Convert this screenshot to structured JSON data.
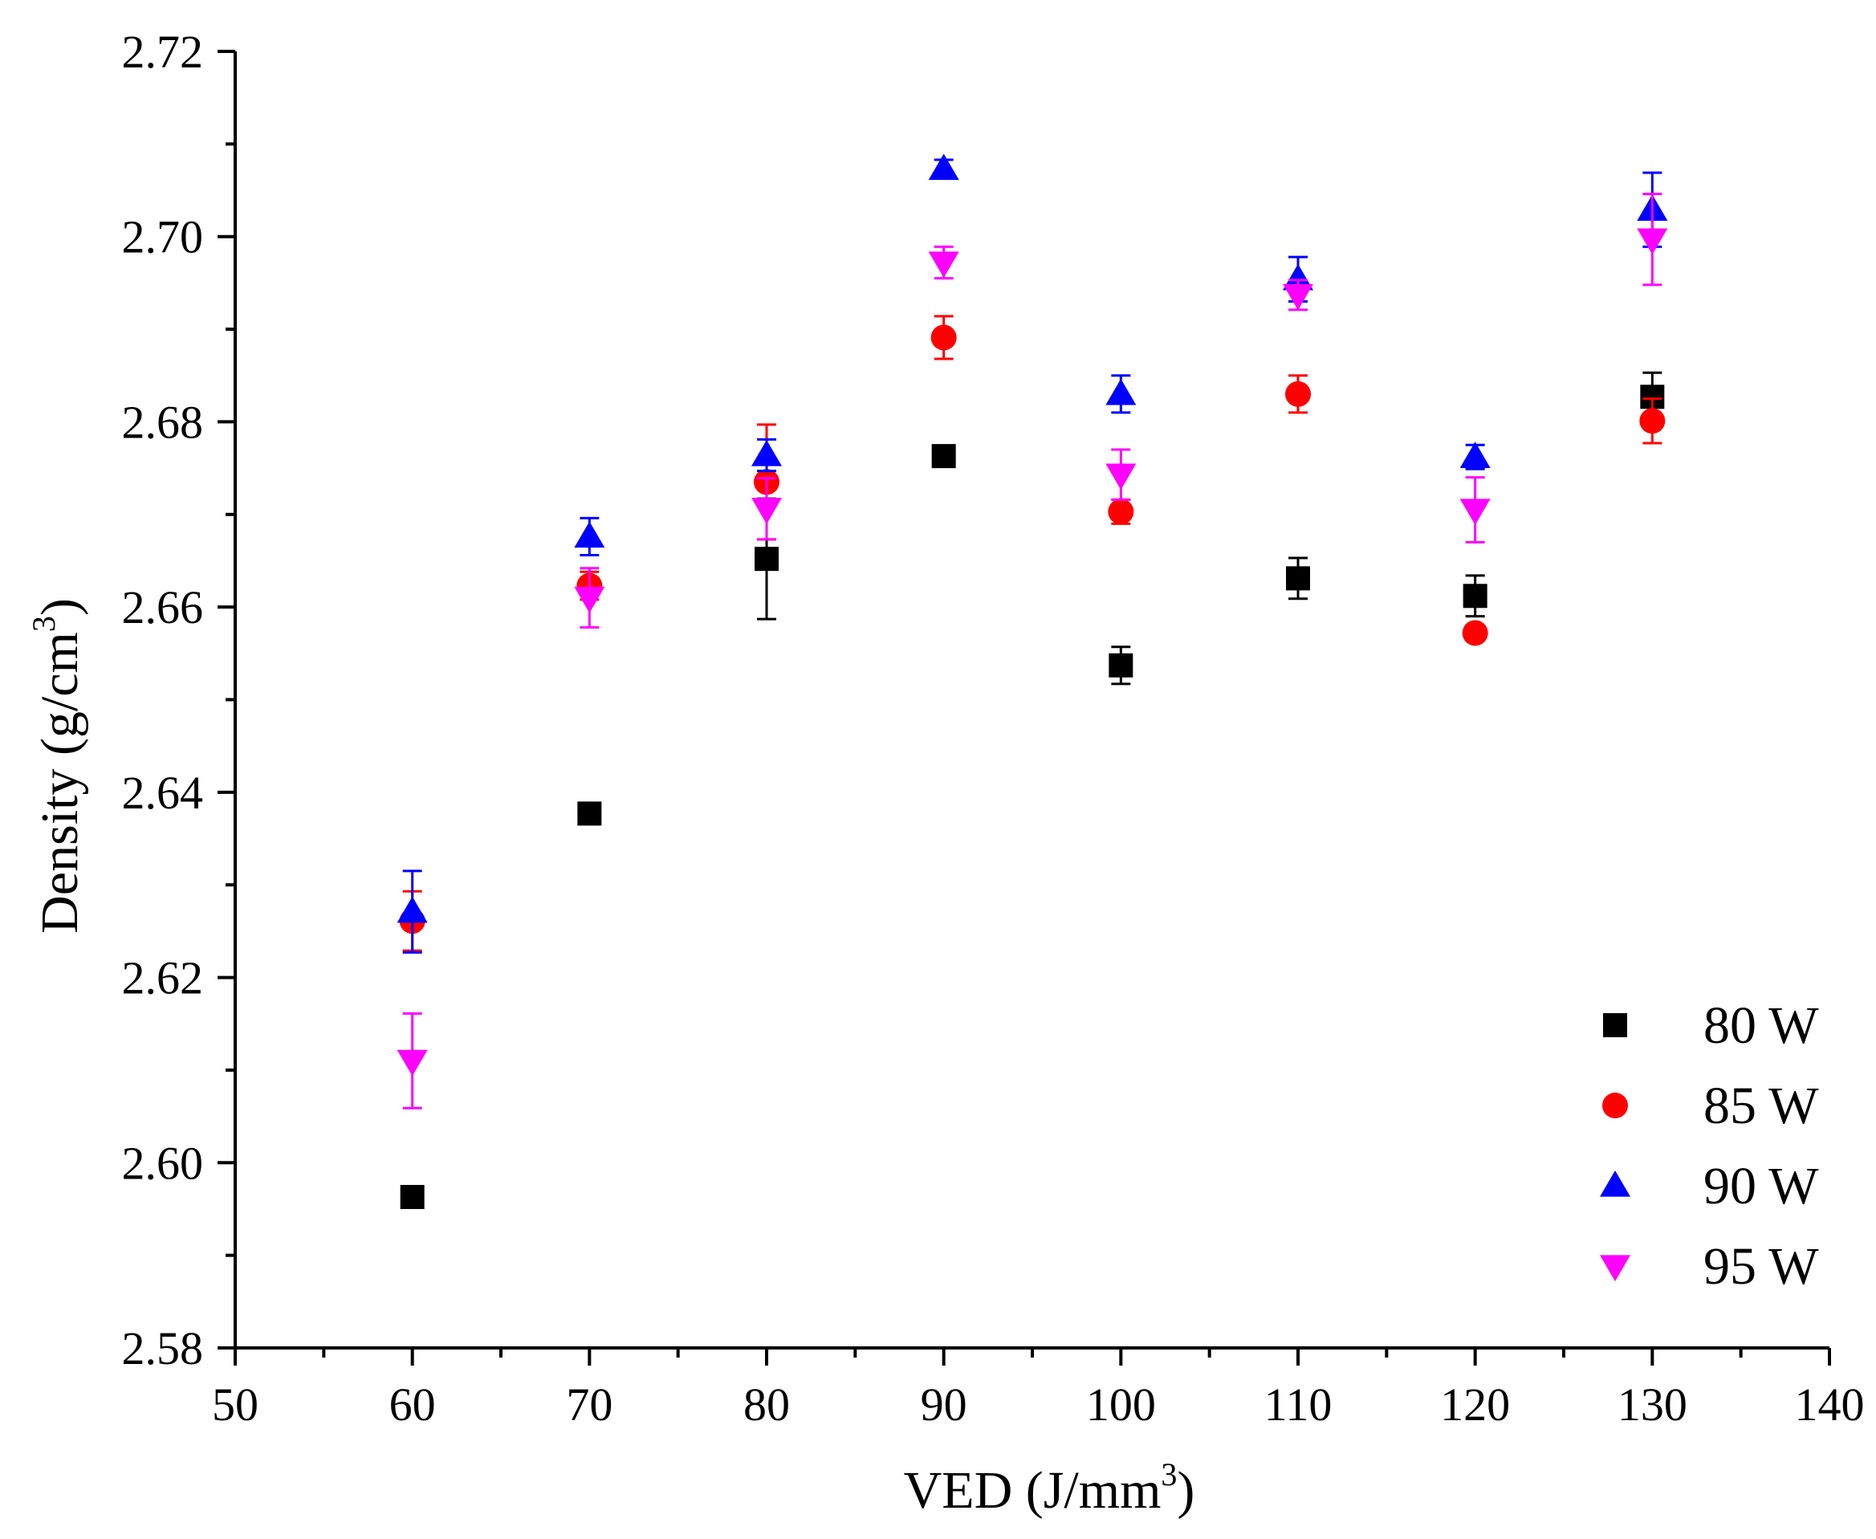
{
  "chart_data": {
    "type": "scatter",
    "title": "",
    "xlabel": "VED (J/mm",
    "xlabel_sup": "3",
    "xlabel_end": ")",
    "ylabel": "Density (g/cm",
    "ylabel_sup": "3",
    "ylabel_end": ")",
    "xlim": [
      50,
      140
    ],
    "ylim": [
      2.58,
      2.72
    ],
    "x_ticks": [
      50,
      60,
      70,
      80,
      90,
      100,
      110,
      120,
      130,
      140
    ],
    "x_tick_labels": [
      "50",
      "60",
      "70",
      "80",
      "90",
      "100",
      "110",
      "120",
      "130",
      "140"
    ],
    "y_ticks": [
      2.58,
      2.6,
      2.62,
      2.64,
      2.66,
      2.68,
      2.7,
      2.72
    ],
    "y_tick_labels": [
      "2.58",
      "2.60",
      "2.62",
      "2.64",
      "2.66",
      "2.68",
      "2.70",
      "2.72"
    ],
    "legend_position": "bottom-right",
    "grid": false,
    "series": [
      {
        "name": "80 W",
        "marker": "square",
        "color": "#000000",
        "x": [
          60,
          70,
          80,
          90,
          100,
          110,
          120,
          130
        ],
        "y": [
          2.5963,
          2.6377,
          2.6652,
          2.6763,
          2.6537,
          2.6631,
          2.6612,
          2.6827
        ],
        "err": [
          0.0003,
          0.0003,
          0.0065,
          0.0003,
          0.002,
          0.0022,
          0.0022,
          0.0026
        ]
      },
      {
        "name": "85 W",
        "marker": "circle",
        "color": "#ff0000",
        "x": [
          60,
          70,
          80,
          90,
          100,
          110,
          120,
          130
        ],
        "y": [
          2.6261,
          2.6623,
          2.6735,
          2.6891,
          2.6703,
          2.683,
          2.6572,
          2.6801
        ],
        "err": [
          0.0032,
          0.0015,
          0.0062,
          0.0023,
          0.0013,
          0.002,
          0.0003,
          0.0024
        ]
      },
      {
        "name": "90 W",
        "marker": "triangle-up",
        "color": "#0000ff",
        "x": [
          60,
          70,
          80,
          90,
          100,
          110,
          120,
          130
        ],
        "y": [
          2.6271,
          2.6676,
          2.6764,
          2.7073,
          2.683,
          2.6954,
          2.6762,
          2.7029
        ],
        "err": [
          0.0044,
          0.002,
          0.0017,
          0.001,
          0.002,
          0.0024,
          0.0013,
          0.004
        ]
      },
      {
        "name": "95 W",
        "marker": "triangle-down",
        "color": "#ff00ff",
        "x": [
          60,
          70,
          80,
          90,
          100,
          110,
          120,
          130
        ],
        "y": [
          2.611,
          2.661,
          2.6706,
          2.6972,
          2.6743,
          2.6937,
          2.6705,
          2.6997
        ],
        "err": [
          0.0051,
          0.0032,
          0.0033,
          0.0017,
          0.0027,
          0.0016,
          0.0035,
          0.0049
        ]
      }
    ]
  }
}
